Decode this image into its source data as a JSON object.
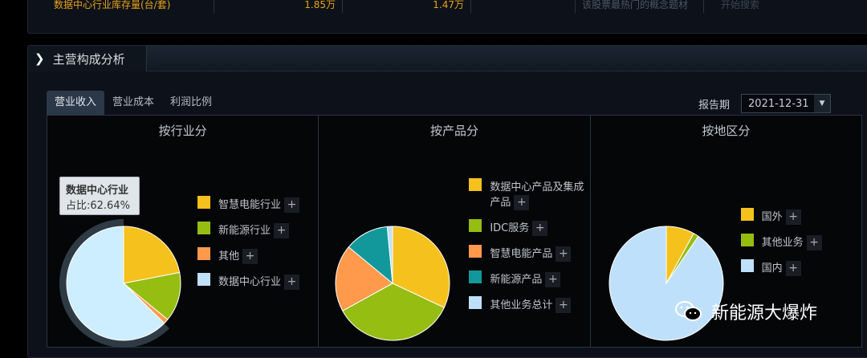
{
  "top": {
    "row_label": "数据中心行业库存量(台/套)",
    "value1": "1.85万",
    "value2": "1.47万",
    "search_hint": "该股票最热门的概念题材",
    "search_button": "开始搜索"
  },
  "section": {
    "title": "主营构成分析",
    "tabs": [
      {
        "label": "营业收入",
        "active": true
      },
      {
        "label": "营业成本"
      },
      {
        "label": "利润比例"
      }
    ],
    "period_label": "报告期",
    "period_value": "2021-12-31"
  },
  "colors": {
    "yellow": "#f5c11d",
    "green": "#95bd12",
    "orange": "#ff9a4d",
    "teal": "#12989a",
    "lightblue": "#bfe0fb"
  },
  "charts": [
    {
      "title": "按行业分",
      "tooltip": {
        "name": "数据中心行业",
        "text": "占比:62.64%"
      },
      "slices": [
        {
          "name": "智慧电能行业",
          "value": 21.96,
          "color": "#f5c11d"
        },
        {
          "name": "新能源行业",
          "value": 14,
          "color": "#95bd12"
        },
        {
          "name": "其他",
          "value": 1.4,
          "color": "#ff9a4d"
        },
        {
          "name": "数据中心行业",
          "value": 62.64,
          "color": "#cdeefe"
        }
      ]
    },
    {
      "title": "按产品分",
      "slices": [
        {
          "name": "数据中心产品及集成产品",
          "value": 32,
          "color": "#f5c11d"
        },
        {
          "name": "IDC服务",
          "value": 35,
          "color": "#95bd12"
        },
        {
          "name": "智慧电能产品",
          "value": 19,
          "color": "#ff9a4d"
        },
        {
          "name": "新能源产品",
          "value": 12.5,
          "color": "#12989a"
        },
        {
          "name": "其他业务总计",
          "value": 1.5,
          "color": "#bfe0fb"
        }
      ]
    },
    {
      "title": "按地区分",
      "slices": [
        {
          "name": "国外",
          "value": 8,
          "color": "#f5c11d"
        },
        {
          "name": "其他业务",
          "value": 1.5,
          "color": "#95bd12"
        },
        {
          "name": "国内",
          "value": 90.5,
          "color": "#bfe0fb"
        }
      ]
    }
  ],
  "watermark": "新能源大爆炸"
}
